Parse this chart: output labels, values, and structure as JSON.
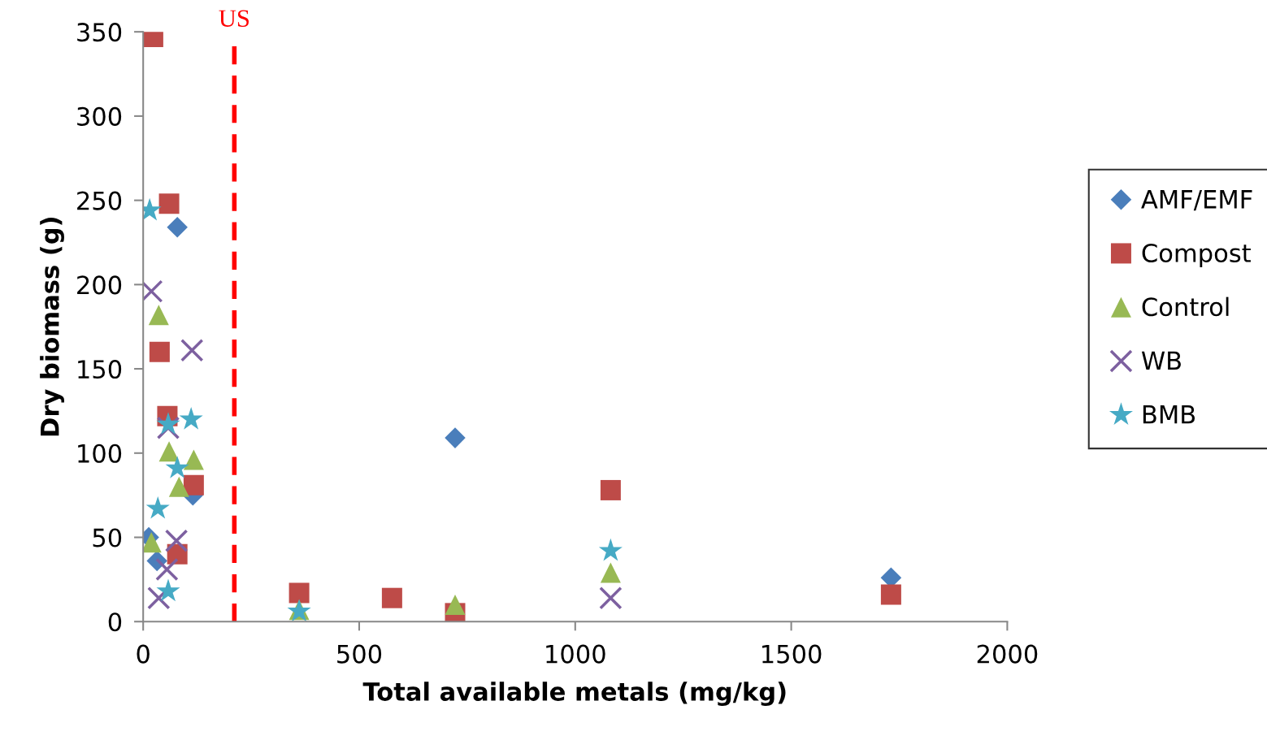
{
  "chart_data": {
    "type": "scatter",
    "xlabel": "Total available metals (mg/kg)",
    "ylabel": "Dry biomass (g)",
    "xlim": [
      0,
      2000
    ],
    "xticks": [
      0,
      500,
      1000,
      1500,
      2000
    ],
    "ylim": [
      0,
      350
    ],
    "yticks": [
      0,
      50,
      100,
      150,
      200,
      250,
      300,
      350
    ],
    "grid": false,
    "legend": "right",
    "series": [
      {
        "name": "AMF/EMF",
        "color": "#4a7ebb",
        "marker": "diamond",
        "x": [
          13,
          32,
          115,
          79,
          722,
          1731
        ],
        "values": [
          50,
          36,
          75,
          234,
          109,
          26
        ]
      },
      {
        "name": "Compost",
        "color": "#be4b48",
        "marker": "square",
        "x": [
          23,
          60,
          38,
          56,
          117,
          79,
          361,
          576,
          722,
          1082,
          1731
        ],
        "values": [
          347,
          248,
          160,
          122,
          81,
          40,
          17,
          14,
          5,
          78,
          16
        ]
      },
      {
        "name": "Control",
        "color": "#98b954",
        "marker": "triangle",
        "x": [
          36,
          60,
          117,
          83,
          19,
          361,
          722,
          1082
        ],
        "values": [
          182,
          101,
          96,
          80,
          47,
          7,
          10,
          29
        ]
      },
      {
        "name": "WB",
        "color": "#7d60a0",
        "marker": "cross",
        "x": [
          19,
          113,
          58,
          77,
          55,
          36,
          1082
        ],
        "values": [
          196,
          161,
          115,
          48,
          31,
          14,
          14
        ]
      },
      {
        "name": "BMB",
        "color": "#46aac5",
        "marker": "star",
        "x": [
          15,
          58,
          111,
          79,
          34,
          58,
          361,
          1082
        ],
        "values": [
          244,
          117,
          120,
          91,
          67,
          18,
          6,
          42
        ]
      }
    ],
    "ref_lines": [
      {
        "axis": "x",
        "value": 211,
        "label": "US",
        "color": "#ff0000",
        "line_style": "dashed"
      }
    ]
  }
}
